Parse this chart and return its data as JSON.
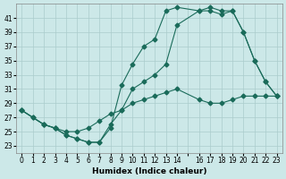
{
  "xlabel": "Humidex (Indice chaleur)",
  "ylabel": "",
  "background_color": "#cce8e8",
  "grid_color": "#aacccc",
  "line_color": "#1a6b5a",
  "xlim": [
    -0.5,
    23.5
  ],
  "ylim": [
    22,
    43
  ],
  "yticks": [
    23,
    25,
    27,
    29,
    31,
    33,
    35,
    37,
    39,
    41
  ],
  "xticks": [
    0,
    1,
    2,
    3,
    4,
    5,
    6,
    7,
    8,
    9,
    10,
    11,
    12,
    13,
    14,
    15,
    16,
    17,
    18,
    19,
    20,
    21,
    22,
    23
  ],
  "xtick_labels": [
    "0",
    "1",
    "2",
    "3",
    "4",
    "5",
    "6",
    "7",
    "8",
    "9",
    "10",
    "11",
    "12",
    "13",
    "14",
    "",
    "16",
    "17",
    "18",
    "19",
    "20",
    "21",
    "22",
    "23"
  ],
  "series1_x": [
    0,
    1,
    2,
    3,
    4,
    5,
    6,
    7,
    8,
    9,
    10,
    11,
    12,
    13,
    14,
    16,
    17,
    18,
    19,
    20,
    21,
    22,
    23
  ],
  "series1_y": [
    28,
    27,
    26,
    25.5,
    24.5,
    24,
    23.5,
    23.5,
    26,
    28,
    31,
    32,
    33,
    34.5,
    40,
    42,
    42.5,
    42,
    42,
    39,
    35,
    32,
    30
  ],
  "series2_x": [
    0,
    1,
    2,
    3,
    4,
    5,
    6,
    7,
    8,
    9,
    10,
    11,
    12,
    13,
    14,
    16,
    17,
    18,
    19,
    20,
    21,
    22,
    23
  ],
  "series2_y": [
    28,
    27,
    26,
    25.5,
    24.5,
    24,
    23.5,
    23.5,
    25.5,
    31.5,
    34.5,
    37,
    38,
    42,
    42.5,
    42,
    42,
    41.5,
    42,
    39,
    35,
    32,
    30
  ],
  "series3_x": [
    0,
    2,
    3,
    4,
    5,
    6,
    7,
    8,
    9,
    10,
    11,
    12,
    13,
    14,
    16,
    17,
    18,
    19,
    20,
    21,
    22,
    23
  ],
  "series3_y": [
    28,
    26,
    25.5,
    25,
    25,
    25.5,
    26.5,
    27.5,
    28,
    29,
    29.5,
    30,
    30.5,
    31,
    29.5,
    29,
    29,
    29.5,
    30,
    30,
    30,
    30
  ]
}
